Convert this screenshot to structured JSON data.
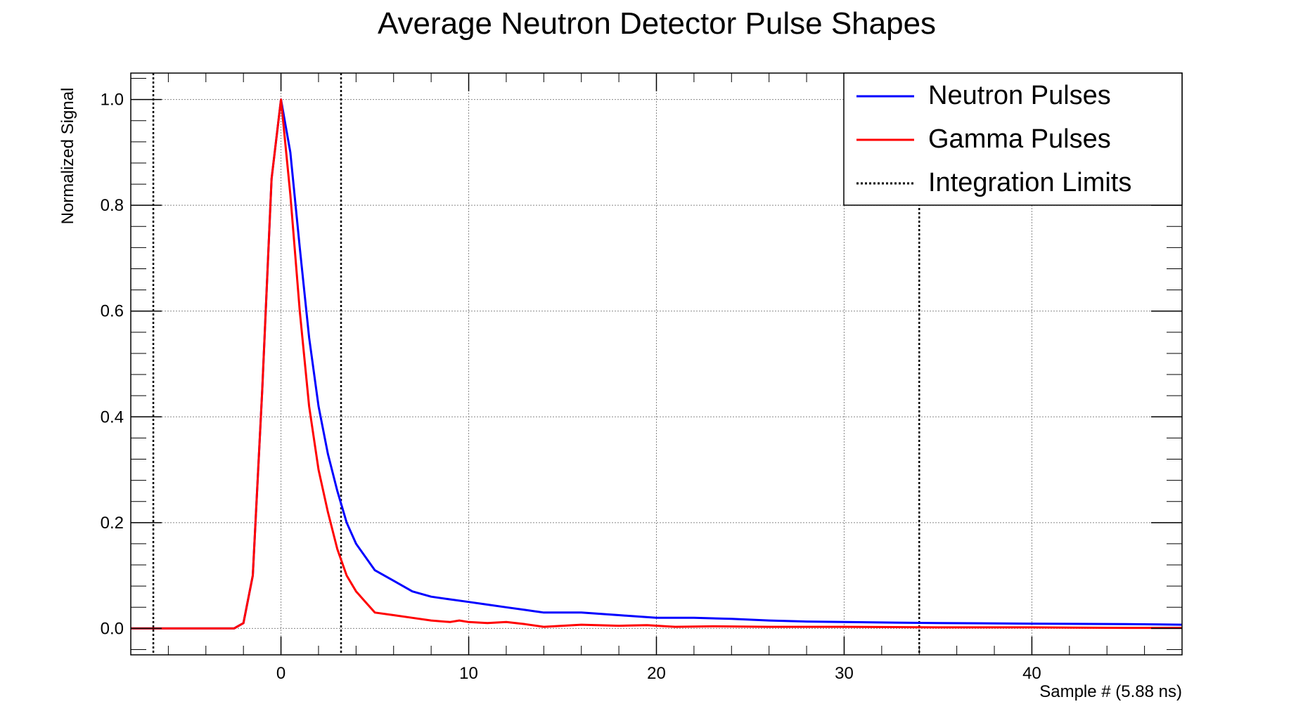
{
  "chart_data": {
    "type": "line",
    "title": "Average Neutron Detector Pulse Shapes",
    "xlabel": "Sample # (5.88 ns)",
    "ylabel": "Normalized Signal",
    "xlim": [
      -8,
      48
    ],
    "ylim": [
      -0.05,
      1.05
    ],
    "x_ticks": [
      0,
      10,
      20,
      30,
      40
    ],
    "y_ticks": [
      0.0,
      0.2,
      0.4,
      0.6,
      0.8,
      1.0
    ],
    "y_tick_labels": [
      "0.0",
      "0.2",
      "0.4",
      "0.6",
      "0.8",
      "1.0"
    ],
    "grid": true,
    "legend_position": "top-right",
    "series": [
      {
        "name": "Neutron Pulses",
        "color": "#0000ff",
        "x": [
          -8,
          -3,
          -2.5,
          -2,
          -1.5,
          -1,
          -0.5,
          0,
          0.5,
          1,
          1.5,
          2,
          2.5,
          3,
          3.5,
          4,
          5,
          6,
          7,
          8,
          9,
          10,
          11,
          12,
          13,
          14,
          15,
          16,
          18,
          20,
          22,
          24,
          26,
          28,
          30,
          35,
          40,
          45,
          48
        ],
        "y": [
          0.0,
          0.0,
          0.0,
          0.01,
          0.1,
          0.45,
          0.85,
          1.0,
          0.9,
          0.72,
          0.55,
          0.42,
          0.33,
          0.26,
          0.2,
          0.16,
          0.11,
          0.09,
          0.07,
          0.06,
          0.055,
          0.05,
          0.045,
          0.04,
          0.035,
          0.03,
          0.03,
          0.03,
          0.025,
          0.02,
          0.02,
          0.018,
          0.015,
          0.013,
          0.012,
          0.01,
          0.009,
          0.008,
          0.007
        ]
      },
      {
        "name": "Gamma Pulses",
        "color": "#ff0000",
        "x": [
          -8,
          -3,
          -2.5,
          -2,
          -1.5,
          -1,
          -0.5,
          0,
          0.5,
          1,
          1.5,
          2,
          2.5,
          3,
          3.5,
          4,
          4.5,
          5,
          6,
          7,
          8,
          9,
          9.5,
          10,
          11,
          12,
          13,
          14,
          15,
          16,
          18,
          19.5,
          21,
          23,
          26,
          30,
          35,
          40,
          45,
          48
        ],
        "y": [
          0.0,
          0.0,
          0.0,
          0.01,
          0.1,
          0.45,
          0.85,
          1.0,
          0.82,
          0.6,
          0.42,
          0.3,
          0.22,
          0.15,
          0.1,
          0.07,
          0.05,
          0.03,
          0.025,
          0.02,
          0.015,
          0.012,
          0.015,
          0.012,
          0.01,
          0.012,
          0.008,
          0.003,
          0.005,
          0.007,
          0.005,
          0.006,
          0.003,
          0.004,
          0.003,
          0.003,
          0.002,
          0.002,
          0.001,
          0.001
        ]
      }
    ],
    "integration_limits": {
      "name": "Integration Limits",
      "color": "#000000",
      "x": [
        -6.8,
        3.2,
        34
      ]
    }
  }
}
